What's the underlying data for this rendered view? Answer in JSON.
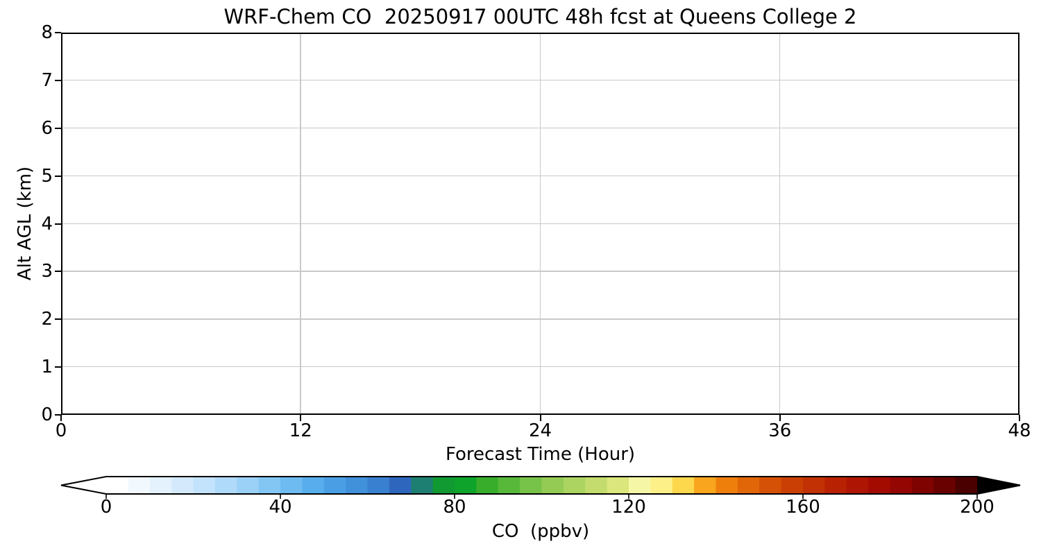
{
  "figure": {
    "background": "#ffffff",
    "text_color": "#000000"
  },
  "chart_data": {
    "type": "heatmap",
    "title": "WRF-Chem CO  20250917 00UTC 48h fcst at Queens College 2",
    "xlabel": "Forecast Time (Hour)",
    "ylabel": "Alt AGL (km)",
    "xlim": [
      0,
      48
    ],
    "ylim": [
      0,
      8
    ],
    "x_ticks": [
      0,
      12,
      24,
      36,
      48
    ],
    "y_ticks": [
      0,
      1,
      2,
      3,
      4,
      5,
      6,
      7,
      8
    ],
    "grid": true,
    "grid_color": "#c9c9c9",
    "spine_color": "#000000",
    "plot_area_fill": "#ffffff",
    "values": [],
    "legend_position": "none",
    "colorbar": {
      "label": "CO  (ppbv)",
      "ticks": [
        0,
        40,
        80,
        120,
        160,
        200
      ],
      "range": [
        0,
        200
      ],
      "segment_step": 5,
      "extend": "both",
      "under_color": "#ffffff",
      "over_color": "#000000",
      "outline_color": "#000000",
      "segment_colors": [
        "#ffffff",
        "#f2f9fe",
        "#e3f2fd",
        "#d4eafc",
        "#c3e2fb",
        "#b0daf9",
        "#9bd1f7",
        "#83c6f4",
        "#6ebbf1",
        "#58aeec",
        "#4a9fe4",
        "#4190da",
        "#3a80d0",
        "#2f66bd",
        "#1d7f72",
        "#109a31",
        "#0ea32a",
        "#38ad2b",
        "#58b83a",
        "#77c248",
        "#93cb55",
        "#abd461",
        "#c3dc6d",
        "#dbe77c",
        "#f6f7a6",
        "#fdf089",
        "#fdd84d",
        "#f9a51e",
        "#ee7f0b",
        "#e16608",
        "#d55106",
        "#ca4004",
        "#c13103",
        "#b82203",
        "#ae1502",
        "#a30b01",
        "#930601",
        "#7f0300",
        "#680100",
        "#4b0000"
      ]
    }
  }
}
